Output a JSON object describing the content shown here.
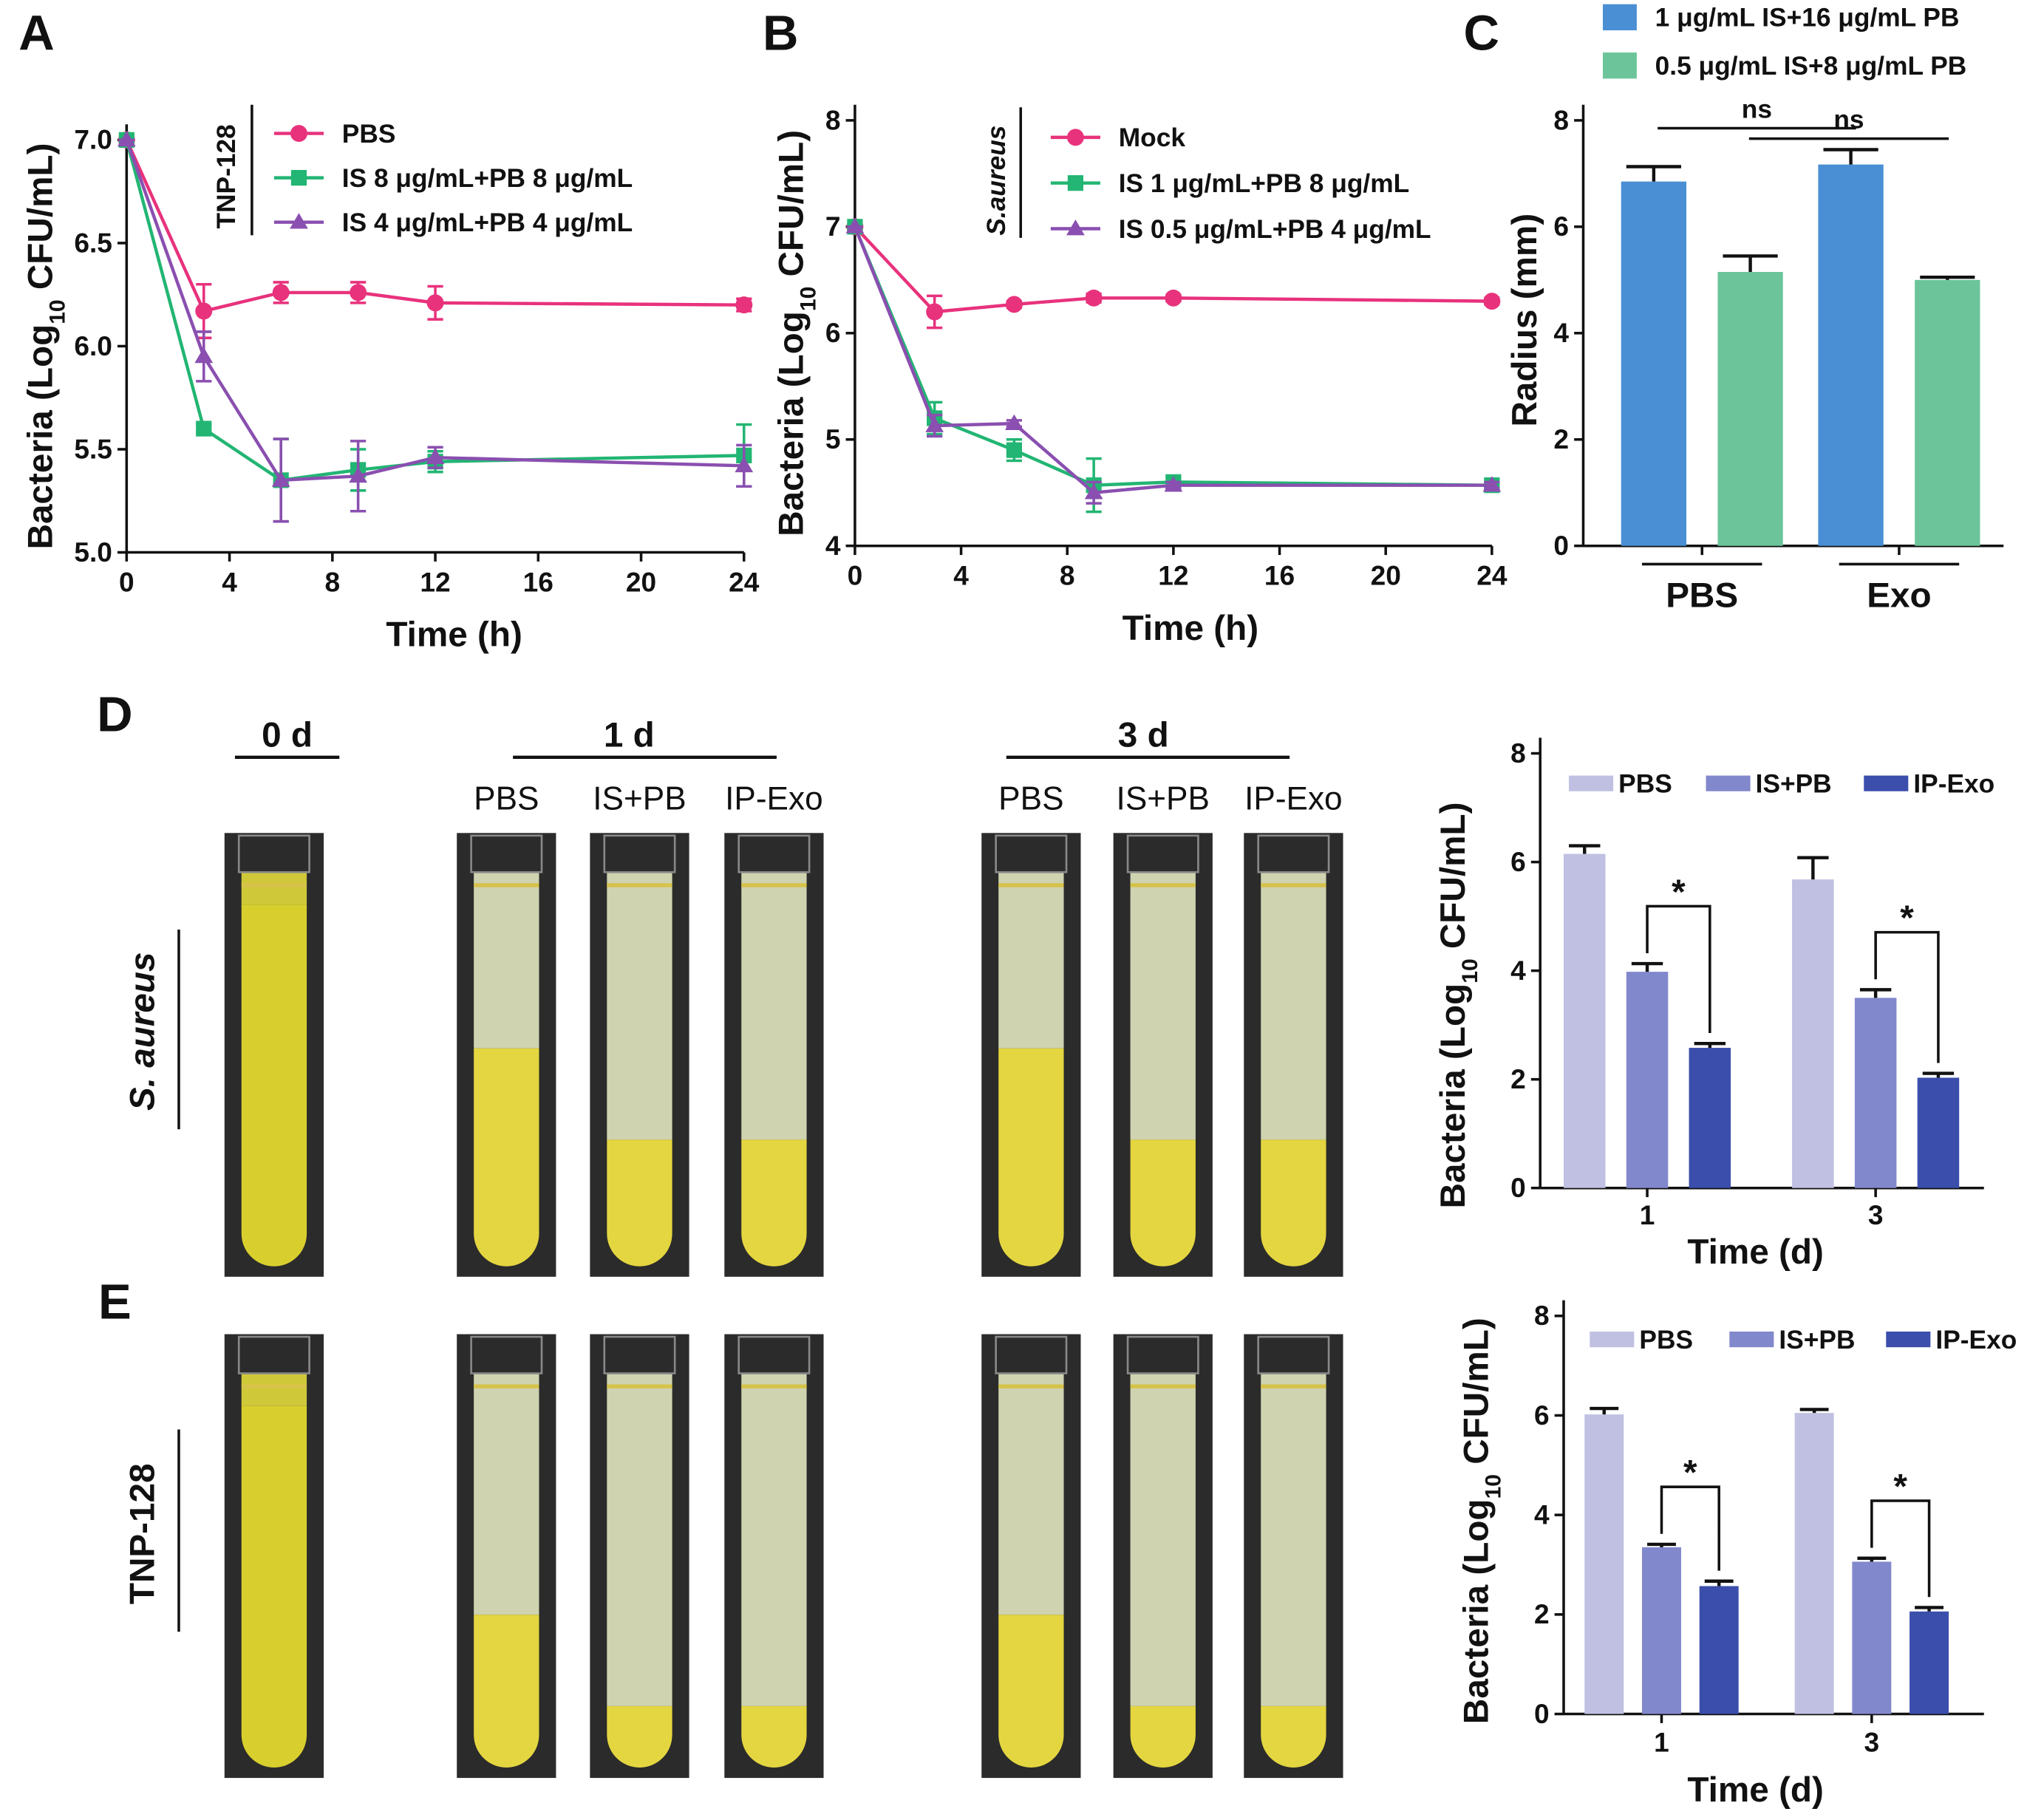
{
  "chart_data": [
    {
      "type": "line",
      "panel": "A",
      "annotation": "TNP-128",
      "x": [
        0,
        3,
        6,
        9,
        12,
        24
      ],
      "xlim": [
        0,
        24
      ],
      "xticks": [
        0,
        4,
        8,
        12,
        16,
        20,
        24
      ],
      "ylim": [
        5,
        7
      ],
      "yticks": [
        {
          "value": 5,
          "label": "5.0"
        },
        5.5,
        {
          "value": 6,
          "label": "6.0"
        },
        6.5,
        {
          "value": 7,
          "label": "7.0"
        }
      ],
      "xlabel": "Time (h)",
      "ylabel": [
        "Bacteria (Log",
        "10",
        " CFU/mL)"
      ],
      "series": [
        {
          "name": "PBS",
          "color": "#e8327c",
          "marker": "circle",
          "values": [
            7.0,
            6.17,
            6.26,
            6.26,
            6.21,
            6.2
          ],
          "errors": [
            0,
            0.13,
            0.05,
            0.05,
            0.08,
            0.03
          ]
        },
        {
          "name": "IS 8 μg/mL+PB 8 μg/mL",
          "color": "#22b573",
          "marker": "square",
          "values": [
            7.0,
            5.6,
            5.35,
            5.4,
            5.44,
            5.47
          ],
          "errors": [
            0,
            0.02,
            0.2,
            0.1,
            0.05,
            0.15
          ]
        },
        {
          "name": "IS 4 μg/mL+PB 4 μg/mL",
          "color": "#8a4fb0",
          "marker": "triangle",
          "values": [
            7.0,
            5.95,
            5.35,
            5.37,
            5.46,
            5.42
          ],
          "errors": [
            0,
            0.12,
            0.2,
            0.17,
            0.05,
            0.1
          ]
        }
      ]
    },
    {
      "type": "line",
      "panel": "B",
      "annotation": "S.aureus",
      "x": [
        0,
        3,
        6,
        9,
        12,
        24
      ],
      "xlim": [
        0,
        24
      ],
      "xticks": [
        0,
        4,
        8,
        12,
        16,
        20,
        24
      ],
      "ylim": [
        4,
        8
      ],
      "yticks": [
        4,
        5,
        6,
        7,
        8
      ],
      "xlabel": "Time (h)",
      "ylabel": [
        "Bacteria (Log",
        "10",
        " CFU/mL)"
      ],
      "series": [
        {
          "name": "Mock",
          "color": "#e8327c",
          "marker": "circle",
          "values": [
            7.0,
            6.2,
            6.27,
            6.33,
            6.33,
            6.3
          ],
          "errors": [
            0,
            0.15,
            0.03,
            0.04,
            0.03,
            0.03
          ]
        },
        {
          "name": "IS 1 μg/mL+PB 8 μg/mL",
          "color": "#22b573",
          "marker": "square",
          "values": [
            7.0,
            5.2,
            4.9,
            4.57,
            4.6,
            4.57
          ],
          "errors": [
            0,
            0.15,
            0.1,
            0.25,
            0.05,
            0.03
          ]
        },
        {
          "name": "IS 0.5 μg/mL+PB 4 μg/mL",
          "color": "#8a4fb0",
          "marker": "triangle",
          "values": [
            7.0,
            5.13,
            5.15,
            4.5,
            4.57,
            4.57
          ],
          "errors": [
            0,
            0.1,
            0.03,
            0.1,
            0.03,
            0.03
          ]
        }
      ]
    },
    {
      "type": "bar",
      "panel": "C",
      "categories": [
        "PBS",
        "Exo"
      ],
      "ylim": [
        0,
        8
      ],
      "yticks": [
        0,
        2,
        4,
        6,
        8
      ],
      "ylabel": "Radius (mm)",
      "annotations": [
        "ns",
        "ns"
      ],
      "series": [
        {
          "name": "1 μg/mL IS+16 μg/mL PB",
          "color": "#4a8fd4",
          "values": [
            6.85,
            7.17
          ],
          "errors": [
            0.28,
            0.28
          ]
        },
        {
          "name": "0.5 μg/mL IS+8 μg/mL PB",
          "color": "#6cc59a",
          "values": [
            5.15,
            5.0
          ],
          "errors": [
            0.3,
            0.05
          ]
        }
      ]
    },
    {
      "type": "bar",
      "categories": [
        "1",
        "3"
      ],
      "xlabel": "Time (d)",
      "ylabel": [
        "Bacteria (Log",
        "10",
        " CFU/mL)"
      ],
      "ylim": [
        0,
        8
      ],
      "yticks": [
        0,
        2,
        4,
        6,
        8
      ],
      "annotations": [
        "*",
        "*"
      ],
      "series": [
        {
          "name": "PBS",
          "color": "#c0c0e2",
          "values": [
            6.15,
            5.68
          ],
          "errors": [
            0.15,
            0.4
          ]
        },
        {
          "name": "IS+PB",
          "color": "#8288cc",
          "values": [
            3.98,
            3.5
          ],
          "errors": [
            0.15,
            0.15
          ]
        },
        {
          "name": "IP-Exo",
          "color": "#3b4eac",
          "values": [
            2.58,
            2.03
          ],
          "errors": [
            0.08,
            0.08
          ]
        }
      ]
    },
    {
      "type": "bar",
      "categories": [
        "1",
        "3"
      ],
      "xlabel": "Time (d)",
      "ylabel": [
        "Bacteria (Log",
        "10",
        " CFU/mL)"
      ],
      "ylim": [
        0,
        8
      ],
      "yticks": [
        0,
        2,
        4,
        6,
        8
      ],
      "annotations": [
        "*",
        "*"
      ],
      "series": [
        {
          "name": "PBS",
          "color": "#c0c0e2",
          "values": [
            6.02,
            6.05
          ],
          "errors": [
            0.12,
            0.07
          ]
        },
        {
          "name": "IS+PB",
          "color": "#8288cc",
          "values": [
            3.35,
            3.06
          ],
          "errors": [
            0.06,
            0.07
          ]
        },
        {
          "name": "IP-Exo",
          "color": "#3b4eac",
          "values": [
            2.57,
            2.06
          ],
          "errors": [
            0.1,
            0.08
          ]
        }
      ]
    }
  ],
  "photo_panel": {
    "timepoints": [
      "0 d",
      "1 d",
      "3 d"
    ],
    "groups": [
      [
        "PBS",
        "IS+PB",
        "IP-Exo"
      ],
      [
        "PBS",
        "IS+PB",
        "IP-Exo"
      ]
    ],
    "rows": [
      {
        "panel": "D",
        "label": "S. aureus"
      },
      {
        "panel": "E",
        "label": "TNP-128"
      }
    ]
  }
}
